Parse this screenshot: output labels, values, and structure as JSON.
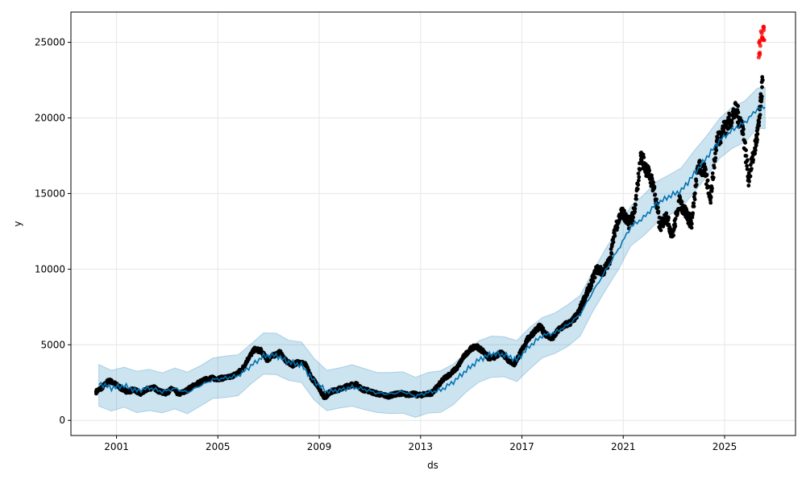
{
  "chart_data": {
    "type": "line",
    "title": "",
    "xlabel": "ds",
    "ylabel": "y",
    "xlim": [
      1999.2,
      2027.8
    ],
    "ylim": [
      -1000,
      27000
    ],
    "x_ticks": [
      2001,
      2005,
      2009,
      2013,
      2017,
      2021,
      2025
    ],
    "x_tick_labels": [
      "2001",
      "2005",
      "2009",
      "2013",
      "2017",
      "2021",
      "2025"
    ],
    "y_ticks": [
      0,
      5000,
      10000,
      15000,
      20000,
      25000
    ],
    "y_tick_labels": [
      "0",
      "5000",
      "10000",
      "15000",
      "20000",
      "25000"
    ],
    "grid": true,
    "series": [
      {
        "role": "forecast",
        "x": [
          2000.3,
          2000.8,
          2001.3,
          2001.8,
          2002.3,
          2002.8,
          2003.3,
          2003.8,
          2004.3,
          2004.8,
          2005.3,
          2005.8,
          2006.3,
          2006.8,
          2007.3,
          2007.8,
          2008.3,
          2008.8,
          2009.3,
          2009.8,
          2010.3,
          2010.8,
          2011.3,
          2011.8,
          2012.3,
          2012.8,
          2013.3,
          2013.8,
          2014.3,
          2014.8,
          2015.3,
          2015.8,
          2016.3,
          2016.8,
          2017.3,
          2017.8,
          2018.3,
          2018.8,
          2019.3,
          2019.8,
          2020.3,
          2020.8,
          2021.3,
          2021.8,
          2022.3,
          2022.8,
          2023.3,
          2023.8,
          2024.3,
          2024.8,
          2025.3,
          2025.8,
          2026.3,
          2026.6
        ],
        "values": [
          2450,
          2150,
          2300,
          1950,
          2150,
          1900,
          2100,
          1850,
          2300,
          2700,
          2800,
          2950,
          3600,
          4250,
          4300,
          3850,
          3650,
          2600,
          1900,
          2000,
          2200,
          2050,
          1800,
          1750,
          1900,
          1600,
          1850,
          2000,
          2550,
          3300,
          4000,
          4400,
          4350,
          4000,
          4900,
          5600,
          5800,
          6300,
          7000,
          8500,
          9900,
          11300,
          12800,
          13400,
          14300,
          14800,
          15200,
          16300,
          17400,
          18500,
          19200,
          19700,
          20600,
          20700
        ]
      },
      {
        "role": "uncertainty_interval",
        "x": [
          2000.3,
          2000.8,
          2001.3,
          2001.8,
          2002.3,
          2002.8,
          2003.3,
          2003.8,
          2004.3,
          2004.8,
          2005.3,
          2005.8,
          2006.3,
          2006.8,
          2007.3,
          2007.8,
          2008.3,
          2008.8,
          2009.3,
          2009.8,
          2010.3,
          2010.8,
          2011.3,
          2011.8,
          2012.3,
          2012.8,
          2013.3,
          2013.8,
          2014.3,
          2014.8,
          2015.3,
          2015.8,
          2016.3,
          2016.8,
          2017.3,
          2017.8,
          2018.3,
          2018.8,
          2019.3,
          2019.8,
          2020.3,
          2020.8,
          2021.3,
          2021.8,
          2022.3,
          2022.8,
          2023.3,
          2023.8,
          2024.3,
          2024.8,
          2025.3,
          2025.8,
          2026.3,
          2026.6
        ],
        "lower": [
          1100,
          800,
          950,
          600,
          800,
          550,
          750,
          500,
          950,
          1350,
          1450,
          1600,
          2250,
          2900,
          2950,
          2500,
          2300,
          1250,
          550,
          650,
          850,
          700,
          450,
          400,
          550,
          250,
          500,
          650,
          1200,
          1950,
          2650,
          3050,
          3000,
          2650,
          3550,
          4250,
          4450,
          4950,
          5650,
          7150,
          8550,
          9950,
          11450,
          12050,
          12950,
          13450,
          13850,
          14950,
          16050,
          17150,
          17850,
          18350,
          19250,
          19350
        ],
        "upper": [
          3800,
          3500,
          3650,
          3300,
          3500,
          3250,
          3450,
          3200,
          3650,
          4050,
          4150,
          4300,
          4950,
          5600,
          5650,
          5200,
          5000,
          3950,
          3250,
          3350,
          3550,
          3400,
          3150,
          3100,
          3250,
          2950,
          3200,
          3350,
          3900,
          4650,
          5350,
          5750,
          5700,
          5350,
          6250,
          6950,
          7150,
          7650,
          8350,
          9850,
          11250,
          12650,
          14150,
          14750,
          15650,
          16150,
          16550,
          17650,
          18750,
          19850,
          20550,
          21050,
          21950,
          22050
        ]
      },
      {
        "role": "observed",
        "x": [
          2000.2,
          2000.45,
          2000.7,
          2000.95,
          2001.2,
          2001.45,
          2001.7,
          2001.95,
          2002.2,
          2002.45,
          2002.7,
          2002.95,
          2003.2,
          2003.45,
          2003.7,
          2003.95,
          2004.2,
          2004.45,
          2004.7,
          2004.95,
          2005.2,
          2005.45,
          2005.7,
          2005.95,
          2006.2,
          2006.45,
          2006.7,
          2006.95,
          2007.2,
          2007.45,
          2007.7,
          2007.95,
          2008.2,
          2008.45,
          2008.7,
          2008.95,
          2009.2,
          2009.45,
          2009.7,
          2009.95,
          2010.2,
          2010.45,
          2010.7,
          2010.95,
          2011.2,
          2011.45,
          2011.7,
          2011.95,
          2012.2,
          2012.45,
          2012.7,
          2012.95,
          2013.2,
          2013.45,
          2013.7,
          2013.95,
          2014.2,
          2014.45,
          2014.7,
          2014.95,
          2015.2,
          2015.45,
          2015.7,
          2015.95,
          2016.2,
          2016.45,
          2016.7,
          2016.95,
          2017.2,
          2017.45,
          2017.7,
          2017.95,
          2018.2,
          2018.45,
          2018.7,
          2018.95,
          2019.2,
          2019.45,
          2019.7,
          2019.95,
          2020.2,
          2020.45,
          2020.7,
          2020.95,
          2021.2,
          2021.45,
          2021.7,
          2021.95,
          2022.2,
          2022.45,
          2022.7,
          2022.95,
          2023.2,
          2023.45,
          2023.7,
          2023.95,
          2024.2,
          2024.45,
          2024.7,
          2024.95,
          2025.2,
          2025.45,
          2025.7,
          2025.95,
          2026.2,
          2026.35,
          2026.5
        ],
        "values": [
          1900,
          2200,
          2650,
          2400,
          2100,
          1900,
          2050,
          1750,
          2050,
          2200,
          1900,
          1800,
          2100,
          1750,
          1900,
          2200,
          2450,
          2650,
          2800,
          2750,
          2800,
          2850,
          3050,
          3350,
          4100,
          4700,
          4600,
          4000,
          4300,
          4500,
          3900,
          3650,
          3900,
          3700,
          2800,
          2300,
          1500,
          1900,
          2000,
          2200,
          2300,
          2400,
          2050,
          1950,
          1800,
          1700,
          1600,
          1700,
          1800,
          1700,
          1750,
          1650,
          1750,
          1800,
          2300,
          2800,
          3100,
          3500,
          4200,
          4700,
          4900,
          4600,
          4100,
          4200,
          4500,
          4000,
          3700,
          4500,
          5300,
          5800,
          6200,
          5700,
          5400,
          6000,
          6300,
          6500,
          7000,
          8000,
          8900,
          10000,
          9800,
          10500,
          12800,
          13800,
          13000,
          13800,
          17500,
          16500,
          15500,
          12800,
          13500,
          12200,
          14500,
          13800,
          13000,
          16800,
          16500,
          14800,
          18500,
          19200,
          19800,
          20500,
          19500,
          16000,
          18000,
          19500,
          22500
        ],
        "color": "#000000"
      },
      {
        "role": "outliers",
        "x": [
          2026.35,
          2026.4,
          2026.45,
          2026.5,
          2026.55
        ],
        "values": [
          24100,
          25000,
          25500,
          25900,
          25200
        ],
        "color": "#ff0000"
      }
    ],
    "colors": {
      "forecast_line": "#0072b2",
      "interval_fill": "#0072b2",
      "interval_opacity": 0.2,
      "points": "#000000",
      "outliers": "#ff0000",
      "grid": "#e6e6e6"
    }
  }
}
